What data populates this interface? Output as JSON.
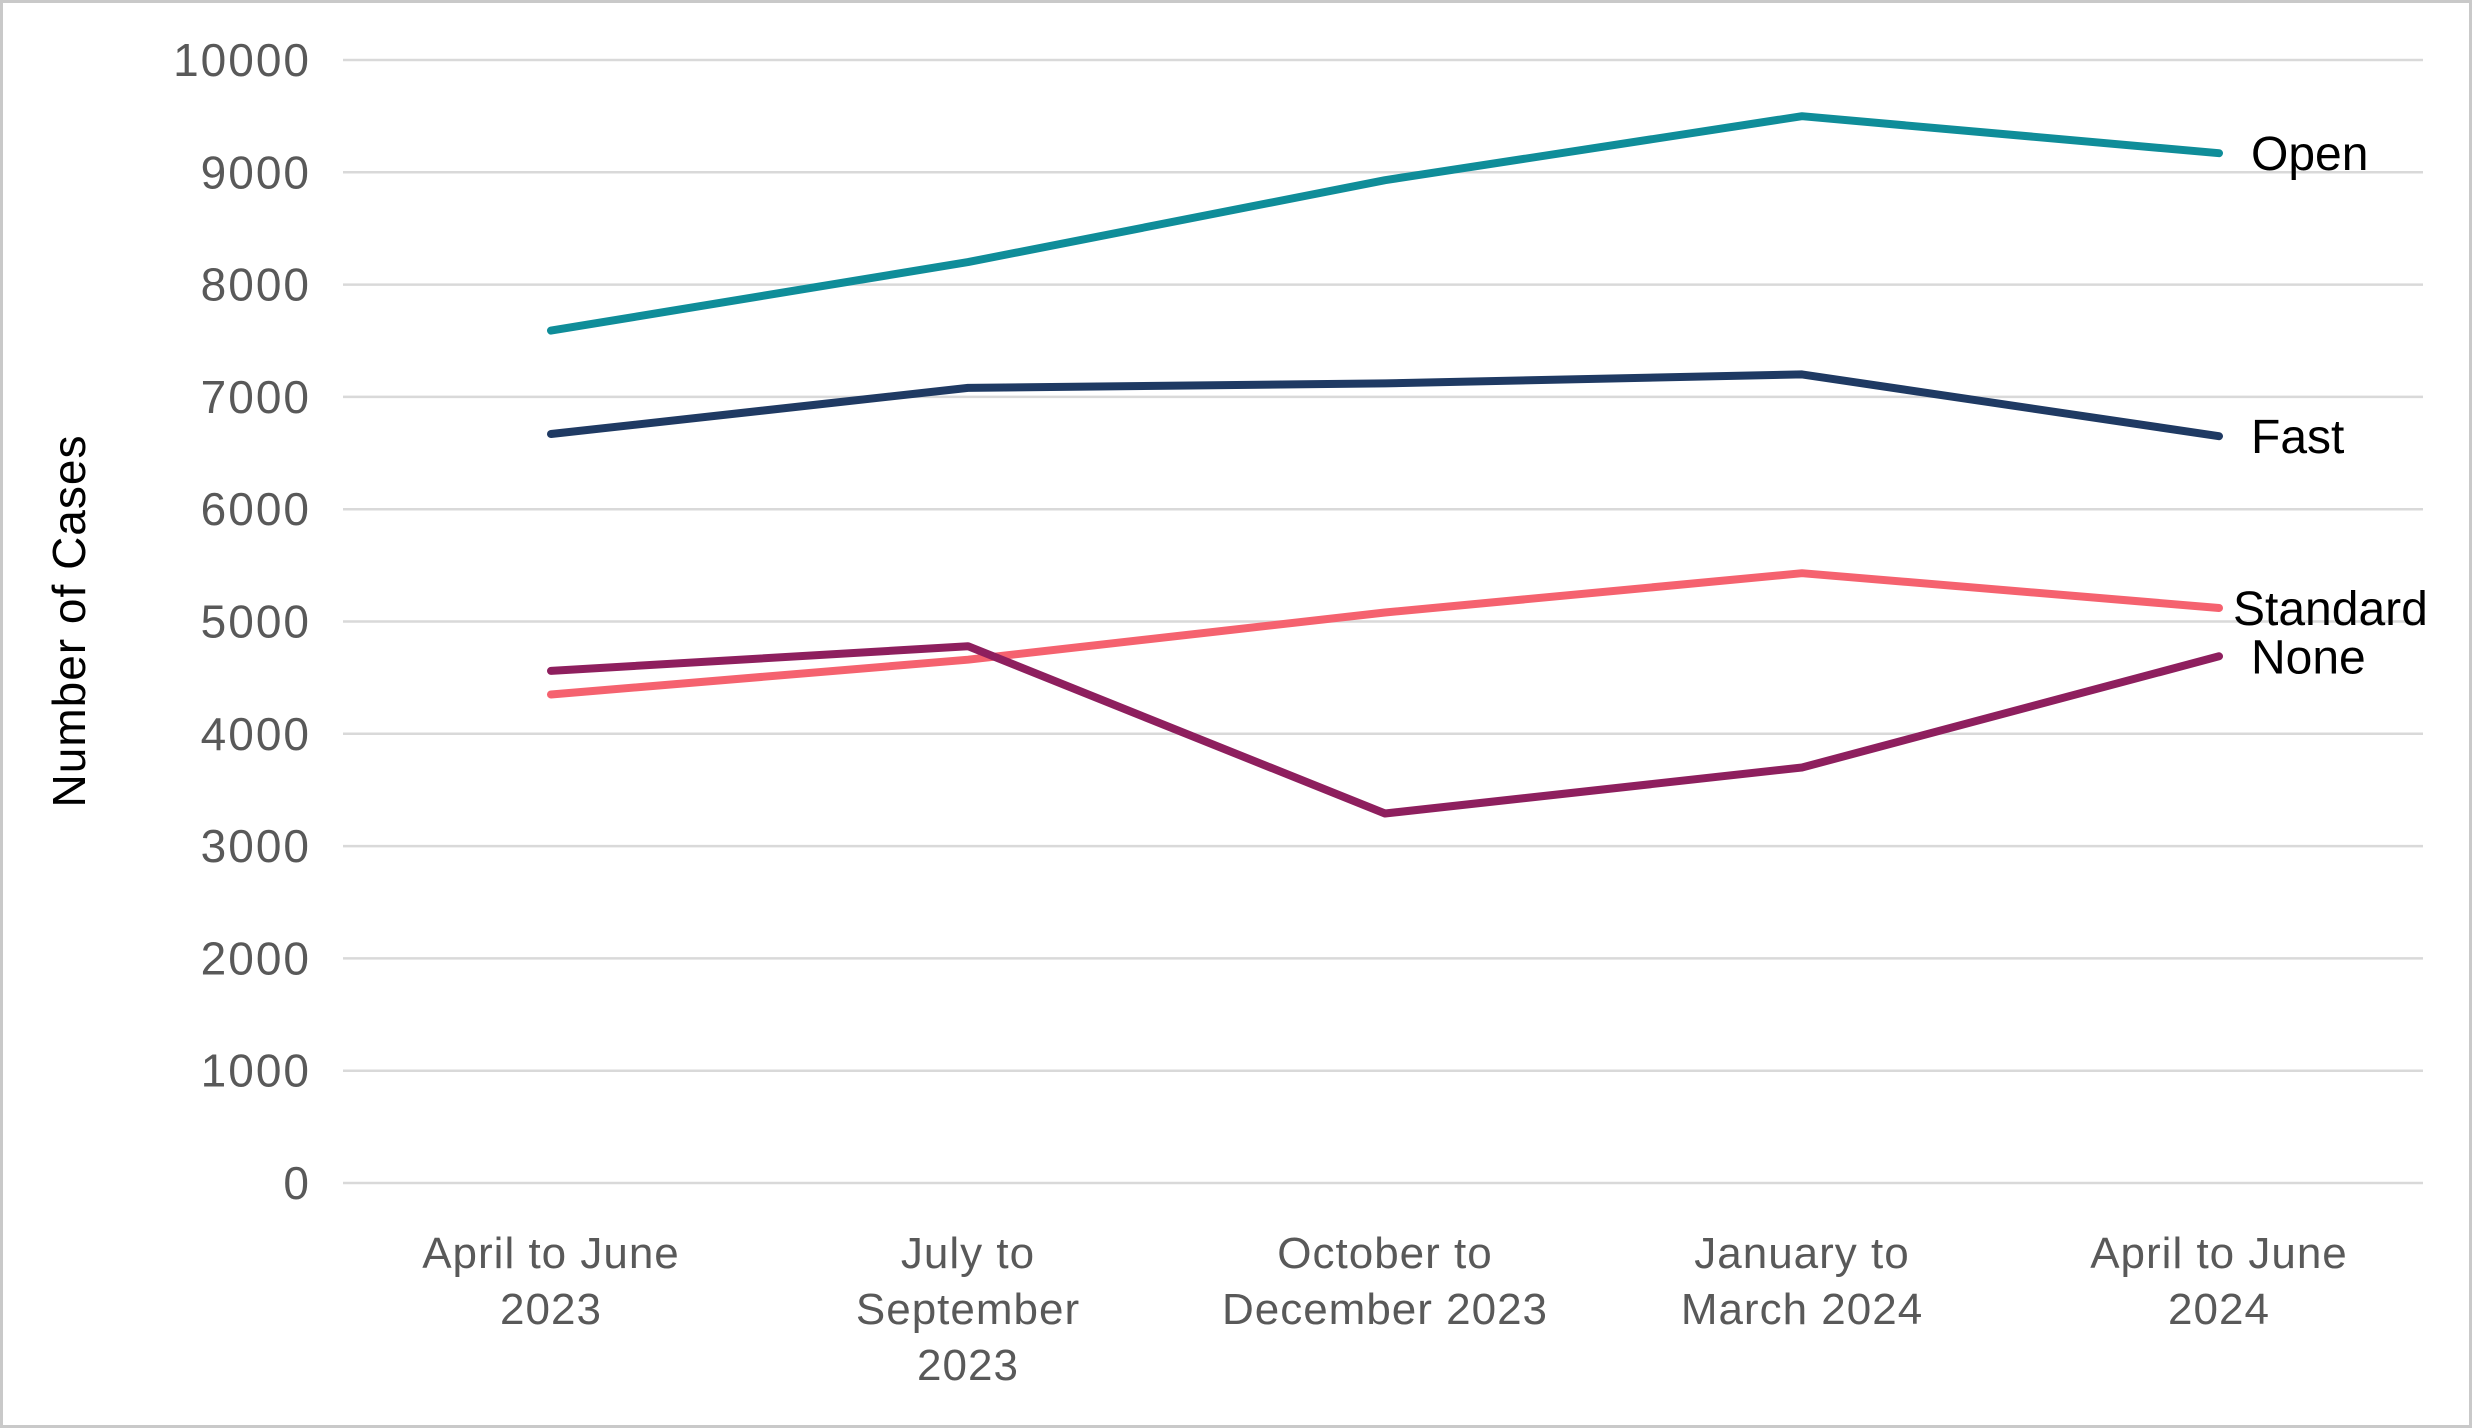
{
  "chart_data": {
    "type": "line",
    "title": "",
    "xlabel": "",
    "ylabel": "Number of Cases",
    "ylim": [
      0,
      10000
    ],
    "y_ticks": [
      0,
      1000,
      2000,
      3000,
      4000,
      5000,
      6000,
      7000,
      8000,
      9000,
      10000
    ],
    "grid": "horizontal",
    "legend_position": "end-of-line-labels-right",
    "categories": [
      "April to June 2023",
      "July to September 2023",
      "October to December 2023",
      "January to March 2024",
      "April to June 2024"
    ],
    "category_label_lines": [
      [
        "April to June",
        "2023"
      ],
      [
        "July to",
        "September",
        "2023"
      ],
      [
        "October to",
        "December 2023"
      ],
      [
        "January to",
        "March 2024"
      ],
      [
        "April to June",
        "2024"
      ]
    ],
    "series": [
      {
        "name": "Open",
        "color": "#0F8D99",
        "values": [
          7590,
          8200,
          8930,
          9500,
          9170
        ]
      },
      {
        "name": "Fast",
        "color": "#1F3A63",
        "values": [
          6670,
          7080,
          7120,
          7200,
          6650
        ]
      },
      {
        "name": "Standard",
        "color": "#F5626F",
        "values": [
          4350,
          4660,
          5080,
          5430,
          5120
        ]
      },
      {
        "name": "None",
        "color": "#8E1F5E",
        "values": [
          4560,
          4780,
          3290,
          3700,
          4690
        ]
      }
    ]
  },
  "colors": {
    "gridline": "#D9D9D9",
    "axis_text": "#595959",
    "series_label_text": "#000000",
    "background": "#FFFFFF",
    "border": "#C9C9C9"
  }
}
